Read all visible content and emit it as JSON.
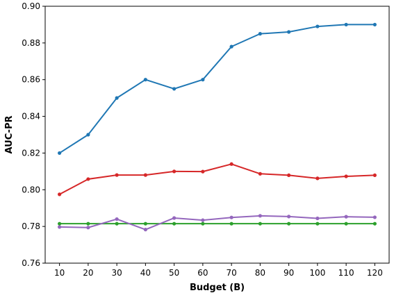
{
  "chart_data": {
    "type": "line",
    "title": "",
    "xlabel": "Budget (B)",
    "ylabel": "AUC-PR",
    "x": [
      10,
      20,
      30,
      40,
      50,
      60,
      70,
      80,
      90,
      100,
      110,
      120
    ],
    "xlim": [
      5,
      125
    ],
    "ylim": [
      0.76,
      0.9
    ],
    "yticks": [
      "0.76",
      "0.78",
      "0.80",
      "0.82",
      "0.84",
      "0.86",
      "0.88",
      "0.90"
    ],
    "xticks": [
      "10",
      "20",
      "30",
      "40",
      "50",
      "60",
      "70",
      "80",
      "90",
      "100",
      "110",
      "120"
    ],
    "grid": false,
    "legend": "none",
    "series": [
      {
        "color": "#1f77b4",
        "values": [
          0.82,
          0.83,
          0.85,
          0.86,
          0.855,
          0.86,
          0.878,
          0.885,
          0.886,
          0.889,
          0.89,
          0.89
        ]
      },
      {
        "color": "#d62728",
        "values": [
          0.7975,
          0.8058,
          0.808,
          0.808,
          0.81,
          0.8099,
          0.814,
          0.8087,
          0.8079,
          0.8062,
          0.8073,
          0.8079
        ]
      },
      {
        "color": "#2ca02c",
        "values": [
          0.7815,
          0.7815,
          0.7815,
          0.7815,
          0.7815,
          0.7815,
          0.7815,
          0.7815,
          0.7815,
          0.7815,
          0.7815,
          0.7815
        ]
      },
      {
        "color": "#9467bd",
        "values": [
          0.7797,
          0.7794,
          0.784,
          0.7783,
          0.7846,
          0.7834,
          0.7849,
          0.7858,
          0.7854,
          0.7844,
          0.7853,
          0.785
        ]
      }
    ]
  }
}
